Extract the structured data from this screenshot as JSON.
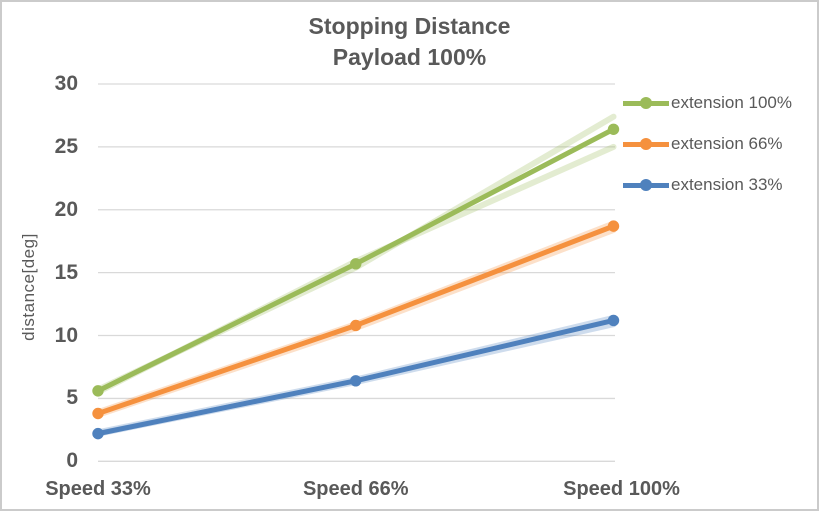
{
  "chart_data": {
    "type": "line",
    "title": "Stopping Distance",
    "subtitle": "Payload 100%",
    "ylabel": "distance[deg]",
    "categories": [
      "Speed 33%",
      "Speed 66%",
      "Speed 100%"
    ],
    "ylim": [
      0,
      30
    ],
    "yticks": [
      0,
      5,
      10,
      15,
      20,
      25,
      30
    ],
    "grid": true,
    "legend_position": "right",
    "text_color": "#595959",
    "gridline_color": "#d9d9d9",
    "series": [
      {
        "name": "extension 100%",
        "color": "#9bbb59",
        "values": [
          5.6,
          15.7,
          26.4
        ]
      },
      {
        "name": "extension 66%",
        "color": "#f5913e",
        "values": [
          3.8,
          10.8,
          18.7
        ]
      },
      {
        "name": "extension 33%",
        "color": "#4f81bd",
        "values": [
          2.2,
          6.4,
          11.2
        ]
      }
    ],
    "shadow_series": [
      {
        "color": "#9bbb59",
        "opacity": 0.28,
        "values": [
          5.7,
          15.4,
          27.4
        ]
      },
      {
        "color": "#9bbb59",
        "opacity": 0.28,
        "values": [
          5.5,
          15.9,
          25.0
        ]
      },
      {
        "color": "#f5913e",
        "opacity": 0.28,
        "values": [
          3.9,
          10.9,
          18.9
        ]
      },
      {
        "color": "#f5913e",
        "opacity": 0.28,
        "values": [
          3.7,
          10.6,
          18.4
        ]
      },
      {
        "color": "#4f81bd",
        "opacity": 0.28,
        "values": [
          2.3,
          6.5,
          11.4
        ]
      },
      {
        "color": "#4f81bd",
        "opacity": 0.28,
        "values": [
          2.2,
          6.3,
          10.9
        ]
      }
    ]
  }
}
